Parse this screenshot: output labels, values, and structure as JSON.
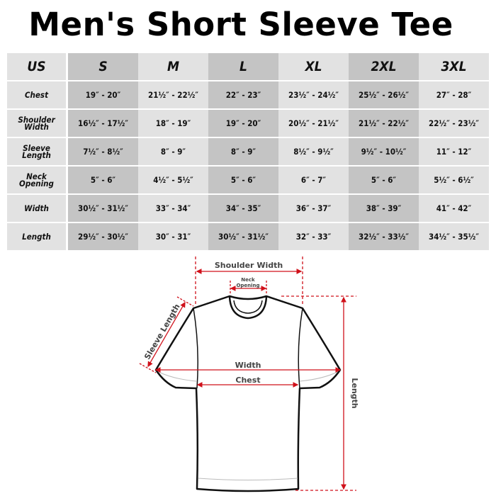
{
  "title": "Men's Short Sleeve Tee",
  "table": {
    "corner": "US",
    "sizes": [
      "S",
      "M",
      "L",
      "XL",
      "2XL",
      "3XL"
    ],
    "rows": [
      {
        "label": [
          "Chest"
        ],
        "values": [
          "19″ - 20″",
          "21½″ - 22½″",
          "22″ - 23″",
          "23½″ - 24½″",
          "25½″ - 26½″",
          "27″ - 28″"
        ]
      },
      {
        "label": [
          "Shoulder",
          "Width"
        ],
        "values": [
          "16½″ - 17½″",
          "18″ - 19″",
          "19″ - 20″",
          "20½″ - 21½″",
          "21½″ - 22½″",
          "22½″ - 23½″"
        ]
      },
      {
        "label": [
          "Sleeve",
          "Length"
        ],
        "values": [
          "7½″ - 8½″",
          "8″ - 9″",
          "8″ - 9″",
          "8½″ - 9½″",
          "9½″ - 10½″",
          "11″ - 12″"
        ]
      },
      {
        "label": [
          "Neck",
          "Opening"
        ],
        "values": [
          "5″ - 6″",
          "4½″ - 5½″",
          "5″ - 6″",
          "6″ - 7″",
          "5″ - 6″",
          "5½″ - 6½″"
        ]
      },
      {
        "label": [
          "Width"
        ],
        "values": [
          "30½″ - 31½″",
          "33″ - 34″",
          "34″ - 35″",
          "36″ - 37″",
          "38″ - 39″",
          "41″ - 42″"
        ]
      },
      {
        "label": [
          "Length"
        ],
        "values": [
          "29½″ - 30½″",
          "30″ - 31″",
          "30½″ - 31½″",
          "32″ - 33″",
          "32½″ - 33½″",
          "34½″ - 35½″"
        ]
      }
    ]
  },
  "diagram": {
    "shoulder_width": "Shoulder Width",
    "neck_opening": [
      "Neck",
      "Opening"
    ],
    "sleeve_length": "Sleeve Length",
    "width": "Width",
    "chest": "Chest",
    "length": "Length"
  },
  "colors": {
    "light_cell": "#e2e2e2",
    "dark_cell": "#c4c4c4",
    "measure_line": "#d0101a"
  }
}
